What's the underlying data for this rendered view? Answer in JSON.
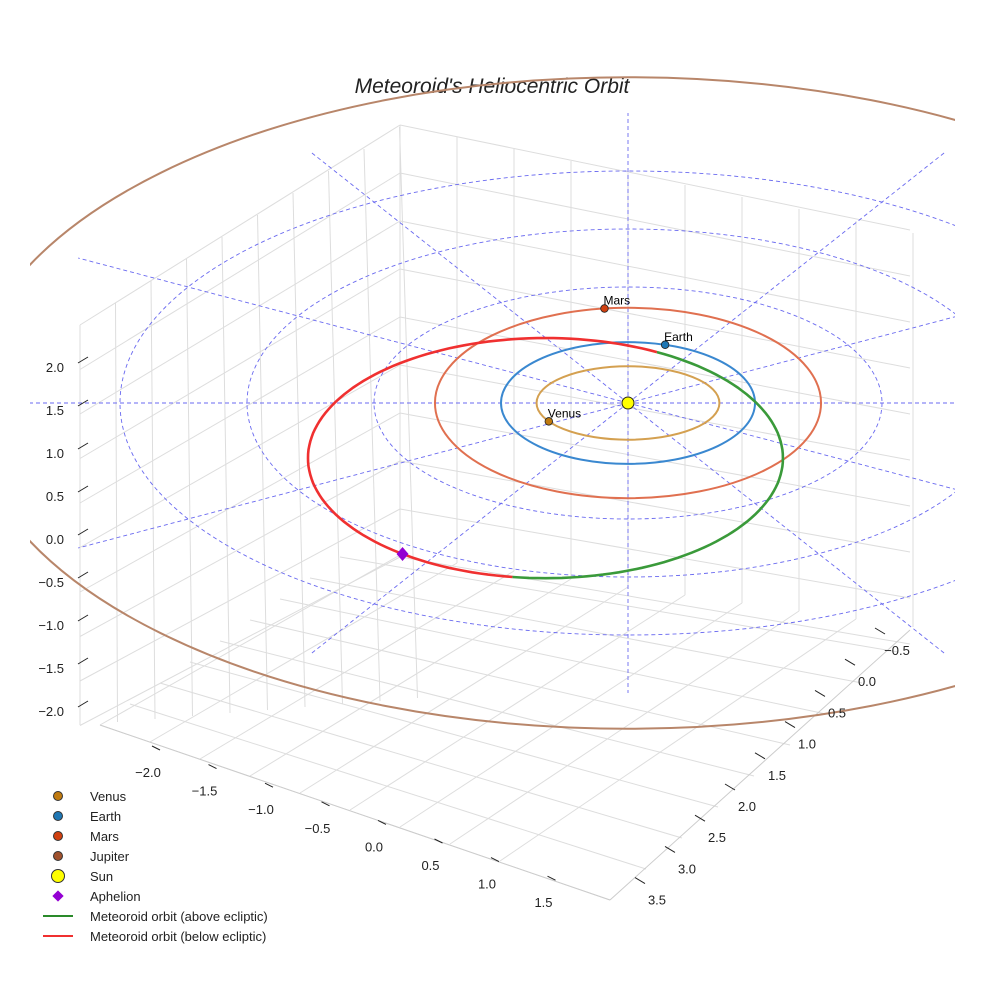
{
  "chart_data": {
    "type": "3d-orbit",
    "title": "Meteoroid's Heliocentric Orbit",
    "z_ticks": [
      "2.0",
      "1.5",
      "1.0",
      "0.5",
      "0.0",
      "−0.5",
      "−1.0",
      "−1.5",
      "−2.0"
    ],
    "x_ticks": [
      "−2.0",
      "−1.5",
      "−1.0",
      "−0.5",
      "0.0",
      "0.5",
      "1.0",
      "1.5"
    ],
    "y_ticks": [
      "−0.5",
      "0.0",
      "0.5",
      "1.0",
      "1.5",
      "2.0",
      "2.5",
      "3.0",
      "3.5"
    ],
    "reference_rings_au": [
      2,
      3,
      4
    ],
    "reference_spokes_deg": [
      0,
      30,
      60,
      90,
      120,
      150,
      180,
      210,
      240,
      270,
      300,
      330
    ],
    "planets": [
      {
        "name": "Venus",
        "orbit_au": 0.72,
        "angle_deg": 150,
        "color": "#d4a050",
        "marker": "#c07a10",
        "label": "Venus"
      },
      {
        "name": "Earth",
        "orbit_au": 1.0,
        "angle_deg": -73,
        "color": "#3a88d0",
        "marker": "#1f77b4",
        "label": "Earth"
      },
      {
        "name": "Mars",
        "orbit_au": 1.52,
        "angle_deg": -97,
        "color": "#e07050",
        "marker": "#d04010",
        "label": "Mars"
      },
      {
        "name": "Jupiter",
        "orbit_au": 5.2,
        "angle_deg": null,
        "color": "#b8866a",
        "marker": "#a0522d",
        "label": null
      }
    ],
    "meteoroid": {
      "center": [
        -0.65,
        0.95
      ],
      "semi_x": 1.87,
      "semi_y": 2.07,
      "above_range_deg": [
        -62,
        98
      ],
      "below_range_deg": [
        98,
        298
      ],
      "above_color": "#3a9a3a",
      "below_color": "#f03030",
      "aphelion_deg": 127
    },
    "sun": {
      "color": "#ffff00"
    },
    "aphelion_color": "#9400d3",
    "legend": [
      {
        "label": "Venus",
        "kind": "dot",
        "color": "#c07a10"
      },
      {
        "label": "Earth",
        "kind": "dot",
        "color": "#1f77b4"
      },
      {
        "label": "Mars",
        "kind": "dot",
        "color": "#d04010"
      },
      {
        "label": "Jupiter",
        "kind": "dot",
        "color": "#a0522d"
      },
      {
        "label": "Sun",
        "kind": "sun",
        "color": "#ffff00"
      },
      {
        "label": "Aphelion",
        "kind": "diamond",
        "color": "#9400d3"
      },
      {
        "label": "Meteoroid orbit (above ecliptic)",
        "kind": "line",
        "color": "#2a8a2a"
      },
      {
        "label": "Meteoroid orbit (below ecliptic)",
        "kind": "line",
        "color": "#f03030"
      }
    ]
  }
}
